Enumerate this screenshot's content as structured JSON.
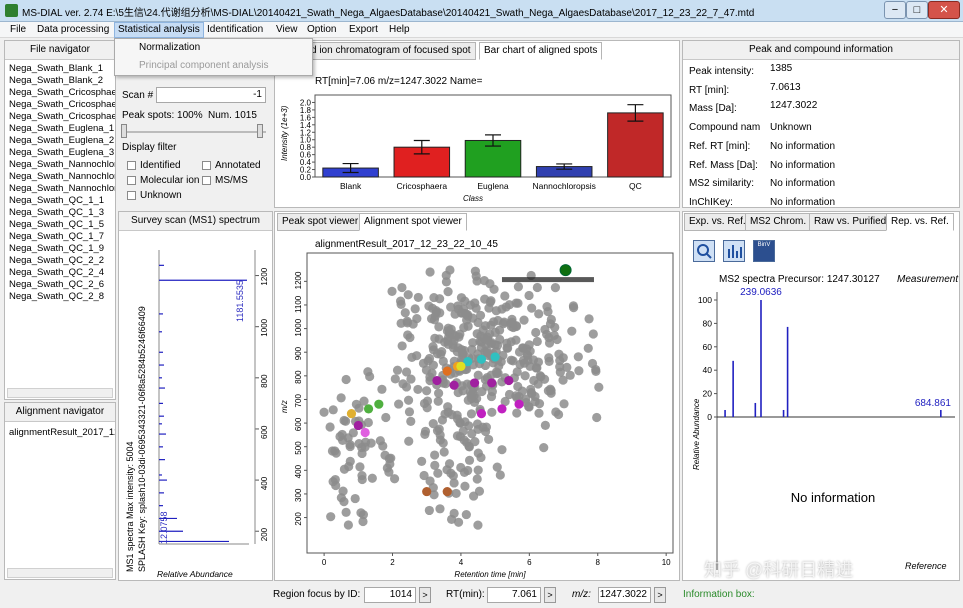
{
  "window": {
    "title": "MS-DIAL ver. 2.74 E:\\5生信\\24.代谢组分析\\MS-DIAL\\20140421_Swath_Nega_AlgaesDatabase\\20140421_Swath_Nega_AlgaesDatabase\\2017_12_23_22_7_47.mtd",
    "min_label": "−",
    "max_label": "□",
    "close_label": "✕"
  },
  "menu": {
    "items": [
      "File",
      "Data processing",
      "Statistical analysis",
      "Identification",
      "View",
      "Option",
      "Export",
      "Help"
    ],
    "dropdown": [
      "Normalization",
      "Principal component analysis"
    ]
  },
  "file_navigator": {
    "title": "File navigator",
    "files": [
      "Nega_Swath_Blank_1",
      "Nega_Swath_Blank_2",
      "Nega_Swath_Cricosphaera_1",
      "Nega_Swath_Cricosphaera_2",
      "Nega_Swath_Cricosphaera_3",
      "Nega_Swath_Euglena_1",
      "Nega_Swath_Euglena_2",
      "Nega_Swath_Euglena_3",
      "Nega_Swath_Nannochloropsis_1",
      "Nega_Swath_Nannochloropsis_2",
      "Nega_Swath_Nannochloropsis_3",
      "Nega_Swath_QC_1_1",
      "Nega_Swath_QC_1_3",
      "Nega_Swath_QC_1_5",
      "Nega_Swath_QC_1_7",
      "Nega_Swath_QC_1_9",
      "Nega_Swath_QC_2_2",
      "Nega_Swath_QC_2_4",
      "Nega_Swath_QC_2_6",
      "Nega_Swath_QC_2_8"
    ]
  },
  "alignment_navigator": {
    "title": "Alignment navigator",
    "items": [
      "alignmentResult_2017_12_23_22_10_45"
    ]
  },
  "filter_panel": {
    "scan_label": "Scan #",
    "scan_value": "-1",
    "peak_spots": "Peak spots: 100%",
    "num": "Num. 1015",
    "display_filter": "Display filter",
    "checks": [
      "Identified",
      "Annotated",
      "Molecular ion",
      "MS/MS",
      "Unknown"
    ]
  },
  "chrom_tabs": [
    "d ion chromatogram of focused spot",
    "Bar chart of aligned spots"
  ],
  "bar_chart": {
    "header": "RT[min]=7.06 m/z=1247.3022 Name=",
    "ylabel": "Intensity (1e+3)",
    "xlabel": "Class"
  },
  "chart_data": [
    {
      "type": "bar",
      "categories": [
        "Blank",
        "Cricosphaera",
        "Euglena",
        "Nannochloropsis",
        "QC"
      ],
      "values": [
        0.24,
        0.8,
        0.98,
        0.28,
        1.72
      ],
      "errors": [
        0.12,
        0.18,
        0.15,
        0.07,
        0.22
      ],
      "colors": [
        "#3040d0",
        "#e02020",
        "#20a020",
        "#3040b0",
        "#c02828"
      ],
      "ylim": [
        0,
        2.2
      ],
      "yticks": [
        "0.0",
        "0.2",
        "0.4",
        "0.6",
        "0.8",
        "1.0",
        "1.2",
        "1.4",
        "1.6",
        "1.8",
        "2.0"
      ],
      "xlabel": "Class",
      "ylabel": "Intensity (1e+3)"
    },
    {
      "type": "scatter",
      "title": "alignmentResult_2017_12_23_22_10_45",
      "xlabel": "Retention time [min]",
      "ylabel": "m/z",
      "xlim": [
        -0.5,
        10.2
      ],
      "ylim": [
        50,
        1320
      ],
      "xticks": [
        "0",
        "2",
        "4",
        "6",
        "8",
        "10"
      ],
      "yticks": [
        "200",
        "300",
        "400",
        "500",
        "600",
        "700",
        "800",
        "900",
        "1000",
        "1100",
        "1200"
      ],
      "highlight": {
        "x": 7.06,
        "y": 1247.3
      }
    },
    {
      "type": "bar",
      "title": "MS2 spectra Precursor: 1247.30127",
      "ylabel": "Relative Abundance",
      "yticks": [
        "0",
        "20",
        "40",
        "60",
        "80",
        "100"
      ],
      "peaks": [
        {
          "mz": 150,
          "int": 6
        },
        {
          "mz": 170,
          "int": 48
        },
        {
          "mz": 225,
          "int": 12
        },
        {
          "mz": 239.06,
          "int": 100
        },
        {
          "mz": 295,
          "int": 6
        },
        {
          "mz": 305,
          "int": 77
        },
        {
          "mz": 684.86,
          "int": 6
        }
      ],
      "labels": [
        "239.0636",
        "684.861"
      ]
    }
  ],
  "survey_scan": {
    "title": "Survey scan (MS1) spectrum",
    "info": "MS1 spectra Max intensity: 5004",
    "splash": "SPLASH Key: splash10-03di-0695343321-06f8a5284b5246f66409",
    "xlabel": "Relative Abundance",
    "tick_labels": [
      "200",
      "400",
      "600",
      "800",
      "1000",
      "1200"
    ],
    "peak_labels": [
      "1181.5535",
      "12.0758"
    ]
  },
  "viewer_tabs": [
    "Peak spot viewer",
    "Alignment spot viewer"
  ],
  "peak_info": {
    "title": "Peak and compound information",
    "rows": [
      {
        "label": "Peak intensity:",
        "value": "1385"
      },
      {
        "label": "RT [min]:",
        "value": "7.0613"
      },
      {
        "label": "Mass [Da]:",
        "value": "1247.3022"
      },
      {
        "label": "Compound nam",
        "value": "Unknown"
      },
      {
        "label": "Ref. RT [min]:",
        "value": "No information"
      },
      {
        "label": "Ref. Mass [Da]:",
        "value": "No information"
      },
      {
        "label": "MS2 similarity:",
        "value": "No information"
      },
      {
        "label": "InChIKey:",
        "value": "No information"
      }
    ]
  },
  "ms2_tabs": [
    "Exp. vs. Ref.",
    "MS2 Chrom.",
    "Raw vs. Purified",
    "Rep. vs. Ref."
  ],
  "ms2": {
    "title": "MS2 spectra Precursor: 1247.30127",
    "measurement": "Measurement",
    "no_info": "No information",
    "reference": "Reference",
    "ylabel": "Relative Abundance",
    "tool_icons": [
      "BinV"
    ]
  },
  "watermark": "知乎 @科研日精进",
  "statusbar": {
    "region_label": "Region focus by ID:",
    "region_value": "1014",
    "rt_label": "RT(min):",
    "rt_value": "7.061",
    "mz_label": "m/z:",
    "mz_value": "1247.3022",
    "info_label": "Information box:"
  }
}
